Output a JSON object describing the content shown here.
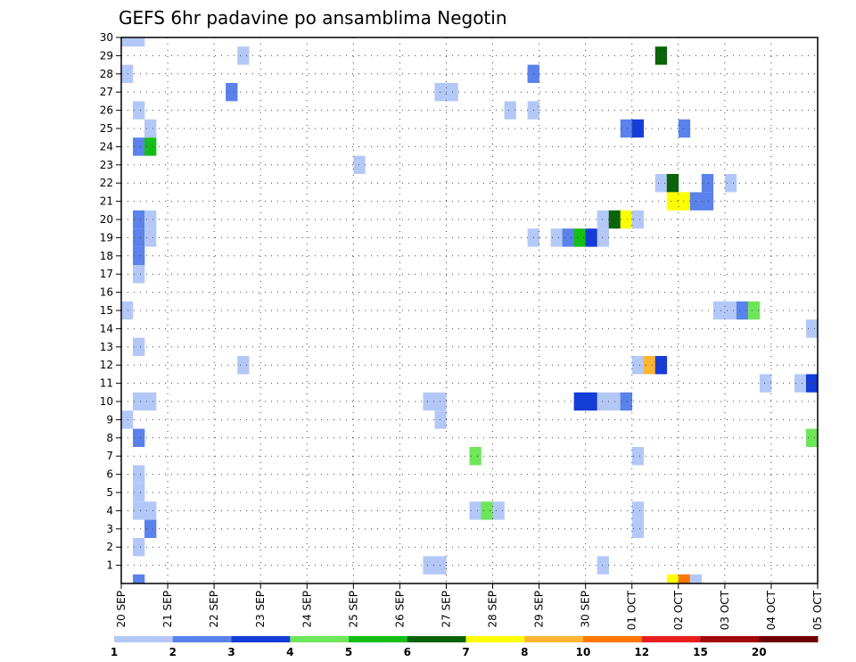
{
  "chart_data": {
    "type": "heatmap",
    "title": "GEFS 6hr padavine po ansamblima Negotin",
    "y_ticks": [
      "1",
      "2",
      "3",
      "4",
      "5",
      "6",
      "7",
      "8",
      "9",
      "10",
      "11",
      "12",
      "13",
      "14",
      "15",
      "16",
      "17",
      "18",
      "19",
      "20",
      "21",
      "22",
      "23",
      "24",
      "25",
      "26",
      "27",
      "28",
      "29",
      "30"
    ],
    "x_ticks": [
      "20 SEP",
      "21 SEP",
      "22 SEP",
      "23 SEP",
      "24 SEP",
      "25 SEP",
      "26 SEP",
      "27 SEP",
      "28 SEP",
      "29 SEP",
      "30 SEP",
      "01 OCT",
      "02 OCT",
      "03 OCT",
      "04 OCT",
      "05 OCT"
    ],
    "xlim": [
      0,
      60
    ],
    "ylim": [
      0,
      30
    ],
    "grid": true,
    "legend": {
      "placement": "bottom",
      "labels": [
        "1",
        "2",
        "3",
        "4",
        "5",
        "6",
        "7",
        "8",
        "10",
        "12",
        "15",
        "20"
      ],
      "colors": [
        "#b4c8f8",
        "#5a82eb",
        "#143cd7",
        "#6ee65a",
        "#14be14",
        "#0a640a",
        "#ffff00",
        "#ffb432",
        "#ff7800",
        "#e61e1e",
        "#a00a0a",
        "#6e0000"
      ]
    },
    "cells": [
      {
        "x": 0,
        "y": 30,
        "c": 0
      },
      {
        "x": 1,
        "y": 30,
        "c": 0
      },
      {
        "x": 0,
        "y": 28,
        "c": 0
      },
      {
        "x": 0,
        "y": 15,
        "c": 0
      },
      {
        "x": 0,
        "y": 9,
        "c": 0
      },
      {
        "x": 1,
        "y": 26,
        "c": 0
      },
      {
        "x": 1,
        "y": 24,
        "c": 1
      },
      {
        "x": 2,
        "y": 24,
        "c": 4
      },
      {
        "x": 2,
        "y": 25,
        "c": 0
      },
      {
        "x": 1,
        "y": 20,
        "c": 1
      },
      {
        "x": 2,
        "y": 20,
        "c": 0
      },
      {
        "x": 1,
        "y": 19,
        "c": 1
      },
      {
        "x": 2,
        "y": 19,
        "c": 0
      },
      {
        "x": 1,
        "y": 18,
        "c": 1
      },
      {
        "x": 1,
        "y": 17,
        "c": 0
      },
      {
        "x": 1,
        "y": 13,
        "c": 0
      },
      {
        "x": 1,
        "y": 10,
        "c": 0
      },
      {
        "x": 2,
        "y": 10,
        "c": 0
      },
      {
        "x": 1,
        "y": 8,
        "c": 1
      },
      {
        "x": 1,
        "y": 6,
        "c": 0
      },
      {
        "x": 1,
        "y": 5,
        "c": 0
      },
      {
        "x": 1,
        "y": 4,
        "c": 0
      },
      {
        "x": 2,
        "y": 4,
        "c": 0
      },
      {
        "x": 2,
        "y": 3,
        "c": 1
      },
      {
        "x": 1,
        "y": 2,
        "c": 0
      },
      {
        "x": 1,
        "y": 0,
        "c": 1
      },
      {
        "x": 10,
        "y": 29,
        "c": 0
      },
      {
        "x": 9,
        "y": 27,
        "c": 1
      },
      {
        "x": 10,
        "y": 12,
        "c": 0
      },
      {
        "x": 20,
        "y": 23,
        "c": 0
      },
      {
        "x": 27,
        "y": 27,
        "c": 0
      },
      {
        "x": 28,
        "y": 27,
        "c": 0
      },
      {
        "x": 26,
        "y": 10,
        "c": 0
      },
      {
        "x": 27,
        "y": 10,
        "c": 0
      },
      {
        "x": 27,
        "y": 9,
        "c": 0
      },
      {
        "x": 26,
        "y": 1,
        "c": 0
      },
      {
        "x": 27,
        "y": 1,
        "c": 0
      },
      {
        "x": 30,
        "y": 7,
        "c": 3
      },
      {
        "x": 30,
        "y": 4,
        "c": 0
      },
      {
        "x": 31,
        "y": 4,
        "c": 3
      },
      {
        "x": 32,
        "y": 4,
        "c": 0
      },
      {
        "x": 33,
        "y": 26,
        "c": 0
      },
      {
        "x": 35,
        "y": 26,
        "c": 0
      },
      {
        "x": 35,
        "y": 28,
        "c": 1
      },
      {
        "x": 35,
        "y": 19,
        "c": 0
      },
      {
        "x": 37,
        "y": 19,
        "c": 0
      },
      {
        "x": 38,
        "y": 19,
        "c": 1
      },
      {
        "x": 39,
        "y": 19,
        "c": 4
      },
      {
        "x": 40,
        "y": 19,
        "c": 2
      },
      {
        "x": 41,
        "y": 19,
        "c": 0
      },
      {
        "x": 41,
        "y": 20,
        "c": 0
      },
      {
        "x": 42,
        "y": 20,
        "c": 5
      },
      {
        "x": 43,
        "y": 20,
        "c": 6
      },
      {
        "x": 44,
        "y": 20,
        "c": 0
      },
      {
        "x": 39,
        "y": 10,
        "c": 2
      },
      {
        "x": 40,
        "y": 10,
        "c": 2
      },
      {
        "x": 41,
        "y": 10,
        "c": 0
      },
      {
        "x": 42,
        "y": 10,
        "c": 0
      },
      {
        "x": 43,
        "y": 10,
        "c": 1
      },
      {
        "x": 41,
        "y": 1,
        "c": 0
      },
      {
        "x": 43,
        "y": 25,
        "c": 1
      },
      {
        "x": 44,
        "y": 25,
        "c": 2
      },
      {
        "x": 44,
        "y": 12,
        "c": 0
      },
      {
        "x": 45,
        "y": 12,
        "c": 7
      },
      {
        "x": 46,
        "y": 12,
        "c": 2
      },
      {
        "x": 44,
        "y": 7,
        "c": 0
      },
      {
        "x": 44,
        "y": 4,
        "c": 0
      },
      {
        "x": 44,
        "y": 3,
        "c": 0
      },
      {
        "x": 46,
        "y": 29,
        "c": 5
      },
      {
        "x": 46,
        "y": 22,
        "c": 0
      },
      {
        "x": 47,
        "y": 22,
        "c": 5
      },
      {
        "x": 47,
        "y": 21,
        "c": 6
      },
      {
        "x": 48,
        "y": 21,
        "c": 6
      },
      {
        "x": 48,
        "y": 25,
        "c": 1
      },
      {
        "x": 49,
        "y": 21,
        "c": 1
      },
      {
        "x": 50,
        "y": 21,
        "c": 1
      },
      {
        "x": 50,
        "y": 22,
        "c": 1
      },
      {
        "x": 47,
        "y": 0,
        "c": 6
      },
      {
        "x": 48,
        "y": 0,
        "c": 8
      },
      {
        "x": 49,
        "y": 0,
        "c": 0
      },
      {
        "x": 52,
        "y": 22,
        "c": 0
      },
      {
        "x": 51,
        "y": 15,
        "c": 0
      },
      {
        "x": 52,
        "y": 15,
        "c": 0
      },
      {
        "x": 53,
        "y": 15,
        "c": 1
      },
      {
        "x": 54,
        "y": 15,
        "c": 3
      },
      {
        "x": 55,
        "y": 11,
        "c": 0
      },
      {
        "x": 58,
        "y": 11,
        "c": 0
      },
      {
        "x": 59,
        "y": 11,
        "c": 2
      },
      {
        "x": 59,
        "y": 14,
        "c": 0
      },
      {
        "x": 59,
        "y": 8,
        "c": 3
      }
    ]
  }
}
